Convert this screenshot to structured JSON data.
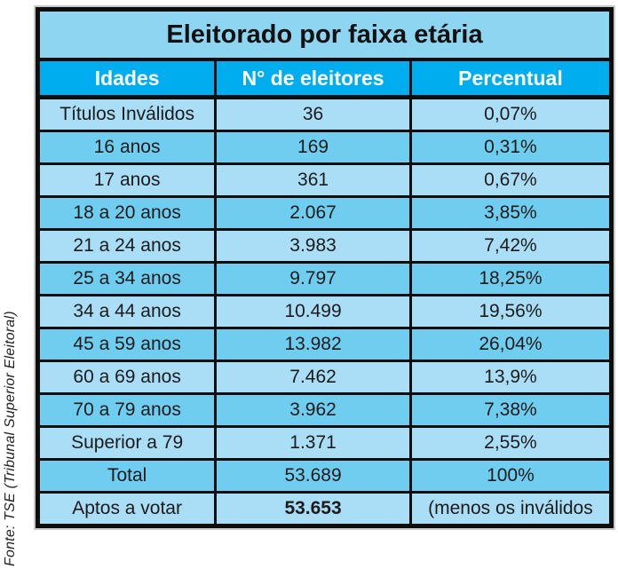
{
  "source_note": "Fonte: TSE (Tribunal Superior Eleitoral)",
  "table": {
    "title": "Eleitorado por  faixa etária",
    "columns": [
      "Idades",
      "N° de eleitores",
      "Percentual"
    ],
    "rows": [
      {
        "idade": "Títulos Inválidos",
        "eleitores": "36",
        "percentual": "0,07%"
      },
      {
        "idade": "16 anos",
        "eleitores": "169",
        "percentual": "0,31%"
      },
      {
        "idade": "17 anos",
        "eleitores": "361",
        "percentual": "0,67%"
      },
      {
        "idade": "18 a 20 anos",
        "eleitores": "2.067",
        "percentual": "3,85%"
      },
      {
        "idade": "21 a 24 anos",
        "eleitores": "3.983",
        "percentual": "7,42%"
      },
      {
        "idade": "25 a 34 anos",
        "eleitores": "9.797",
        "percentual": "18,25%"
      },
      {
        "idade": "34 a 44 anos",
        "eleitores": "10.499",
        "percentual": "19,56%"
      },
      {
        "idade": "45 a 59 anos",
        "eleitores": "13.982",
        "percentual": "26,04%"
      },
      {
        "idade": "60 a 69 anos",
        "eleitores": "7.462",
        "percentual": "13,9%"
      },
      {
        "idade": "70 a 79 anos",
        "eleitores": "3.962",
        "percentual": "7,38%"
      },
      {
        "idade": "Superior a 79",
        "eleitores": "1.371",
        "percentual": "2,55%"
      },
      {
        "idade": "Total",
        "eleitores": "53.689",
        "percentual": "100%"
      },
      {
        "idade": "Aptos a votar",
        "eleitores": "53.653",
        "percentual": "(menos os inválidos"
      }
    ]
  },
  "colors": {
    "header_bg": "#00aeef",
    "title_bg": "#8ed5f2",
    "row_light": "#aadef7",
    "row_medium": "#6fcdf0",
    "border": "#0d0d0d",
    "header_text": "#ffffff",
    "body_text": "#1b1b1b"
  },
  "chart_data": {
    "type": "table",
    "title": "Eleitorado por faixa etária",
    "columns": [
      "Idades",
      "N° de eleitores",
      "Percentual"
    ],
    "categories": [
      "Títulos Inválidos",
      "16 anos",
      "17 anos",
      "18 a 20 anos",
      "21 a 24 anos",
      "25 a 34 anos",
      "34 a 44 anos",
      "45 a 59 anos",
      "60 a 69 anos",
      "70 a 79 anos",
      "Superior a 79",
      "Total",
      "Aptos a votar"
    ],
    "eleitores": [
      36,
      169,
      361,
      2067,
      3983,
      9797,
      10499,
      13982,
      7462,
      3962,
      1371,
      53689,
      53653
    ],
    "percentual": [
      "0,07%",
      "0,31%",
      "0,67%",
      "3,85%",
      "7,42%",
      "18,25%",
      "19,56%",
      "26,04%",
      "13,9%",
      "7,38%",
      "2,55%",
      "100%",
      "(menos os inválidos"
    ],
    "source": "Fonte: TSE (Tribunal Superior Eleitoral)"
  }
}
